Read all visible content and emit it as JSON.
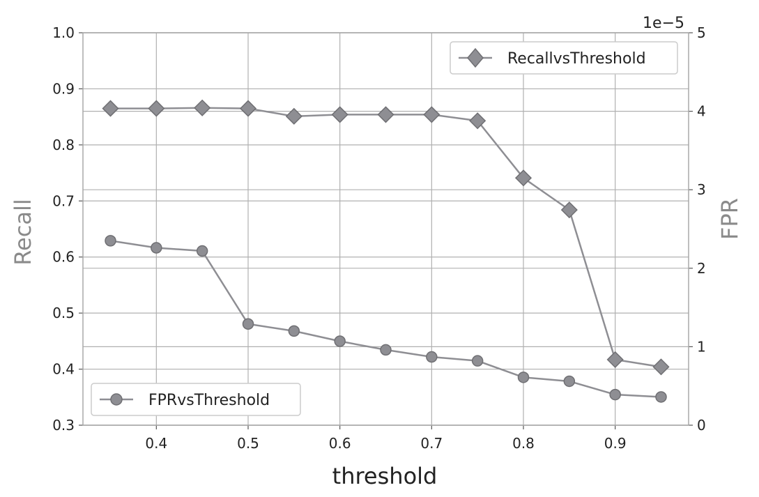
{
  "chart_data": {
    "type": "line",
    "xlabel": "threshold",
    "ylabel_left": "Recall",
    "ylabel_right": "FPR",
    "right_axis_scale_label": "1e−5",
    "xlim": [
      0.32,
      0.98
    ],
    "ylim_left": [
      0.3,
      1.0
    ],
    "ylim_right": [
      0,
      5
    ],
    "x_ticks": [
      "0.4",
      "0.5",
      "0.6",
      "0.7",
      "0.8",
      "0.9"
    ],
    "y_left_ticks": [
      "0.3",
      "0.4",
      "0.5",
      "0.6",
      "0.7",
      "0.8",
      "0.9",
      "1.0"
    ],
    "y_right_ticks": [
      "0",
      "1",
      "2",
      "3",
      "4",
      "5"
    ],
    "grid": true,
    "series": [
      {
        "name": "RecallvsThreshold",
        "axis": "left",
        "marker": "diamond",
        "x": [
          0.35,
          0.4,
          0.45,
          0.5,
          0.55,
          0.6,
          0.65,
          0.7,
          0.75,
          0.8,
          0.85,
          0.9,
          0.95
        ],
        "y": [
          0.865,
          0.865,
          0.866,
          0.865,
          0.851,
          0.854,
          0.854,
          0.854,
          0.843,
          0.741,
          0.684,
          0.417,
          0.404
        ],
        "legend_position": "upper-right"
      },
      {
        "name": "FPRvsThreshold",
        "axis": "right",
        "marker": "circle",
        "x": [
          0.35,
          0.4,
          0.45,
          0.5,
          0.55,
          0.6,
          0.65,
          0.7,
          0.75,
          0.8,
          0.85,
          0.9,
          0.95
        ],
        "y": [
          2.35,
          2.26,
          2.22,
          1.29,
          1.2,
          1.07,
          0.96,
          0.87,
          0.82,
          0.61,
          0.56,
          0.39,
          0.36
        ],
        "legend_position": "lower-left"
      }
    ]
  },
  "colors": {
    "line": "#8e8e93",
    "marker_fill": "#8e8e93",
    "marker_edge": "#6f6f73",
    "grid": "#b0b0b0",
    "axis_title": "#8a8a8a",
    "frame": "#a8a8a8"
  }
}
